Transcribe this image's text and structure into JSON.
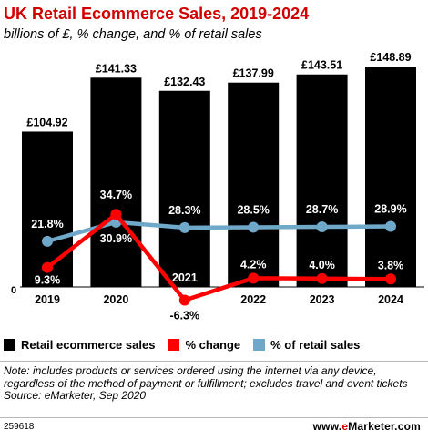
{
  "header": {
    "title": "UK Retail Ecommerce Sales, 2019-2024",
    "subtitle": "billions of £, % change, and % of retail sales"
  },
  "chart_data": {
    "type": "bar",
    "categories": [
      "2019",
      "2020",
      "2021",
      "2022",
      "2023",
      "2024"
    ],
    "y_zero_label": "0",
    "series": [
      {
        "name": "Retail ecommerce sales",
        "type": "bar",
        "color": "#000000",
        "values": [
          104.92,
          141.33,
          132.43,
          137.99,
          143.51,
          148.89
        ],
        "labels": [
          "£104.92",
          "£141.33",
          "£132.43",
          "£137.99",
          "£143.51",
          "£148.89"
        ]
      },
      {
        "name": "% change",
        "type": "line",
        "color": "#ff0000",
        "values": [
          9.3,
          34.7,
          -6.3,
          4.2,
          4.0,
          3.8
        ],
        "labels": [
          "9.3%",
          "34.7%",
          "-6.3%",
          "4.2%",
          "4.0%",
          "3.8%"
        ]
      },
      {
        "name": "% of retail sales",
        "type": "line",
        "color": "#6fa8c8",
        "values": [
          21.8,
          30.9,
          28.3,
          28.5,
          28.7,
          28.9
        ],
        "labels": [
          "21.8%",
          "30.9%",
          "28.3%",
          "28.5%",
          "28.7%",
          "28.9%"
        ]
      }
    ],
    "grid": false,
    "legend_position": "bottom"
  },
  "note": "Note: includes products or services ordered using the internet via any device, regardless of the method of payment or fulfillment; excludes travel and event tickets",
  "source": "Source: eMarketer, Sep 2020",
  "footer": {
    "chart_id": "259618",
    "brand_prefix": "www.",
    "brand_e": "e",
    "brand_suffix": "Marketer.com"
  }
}
